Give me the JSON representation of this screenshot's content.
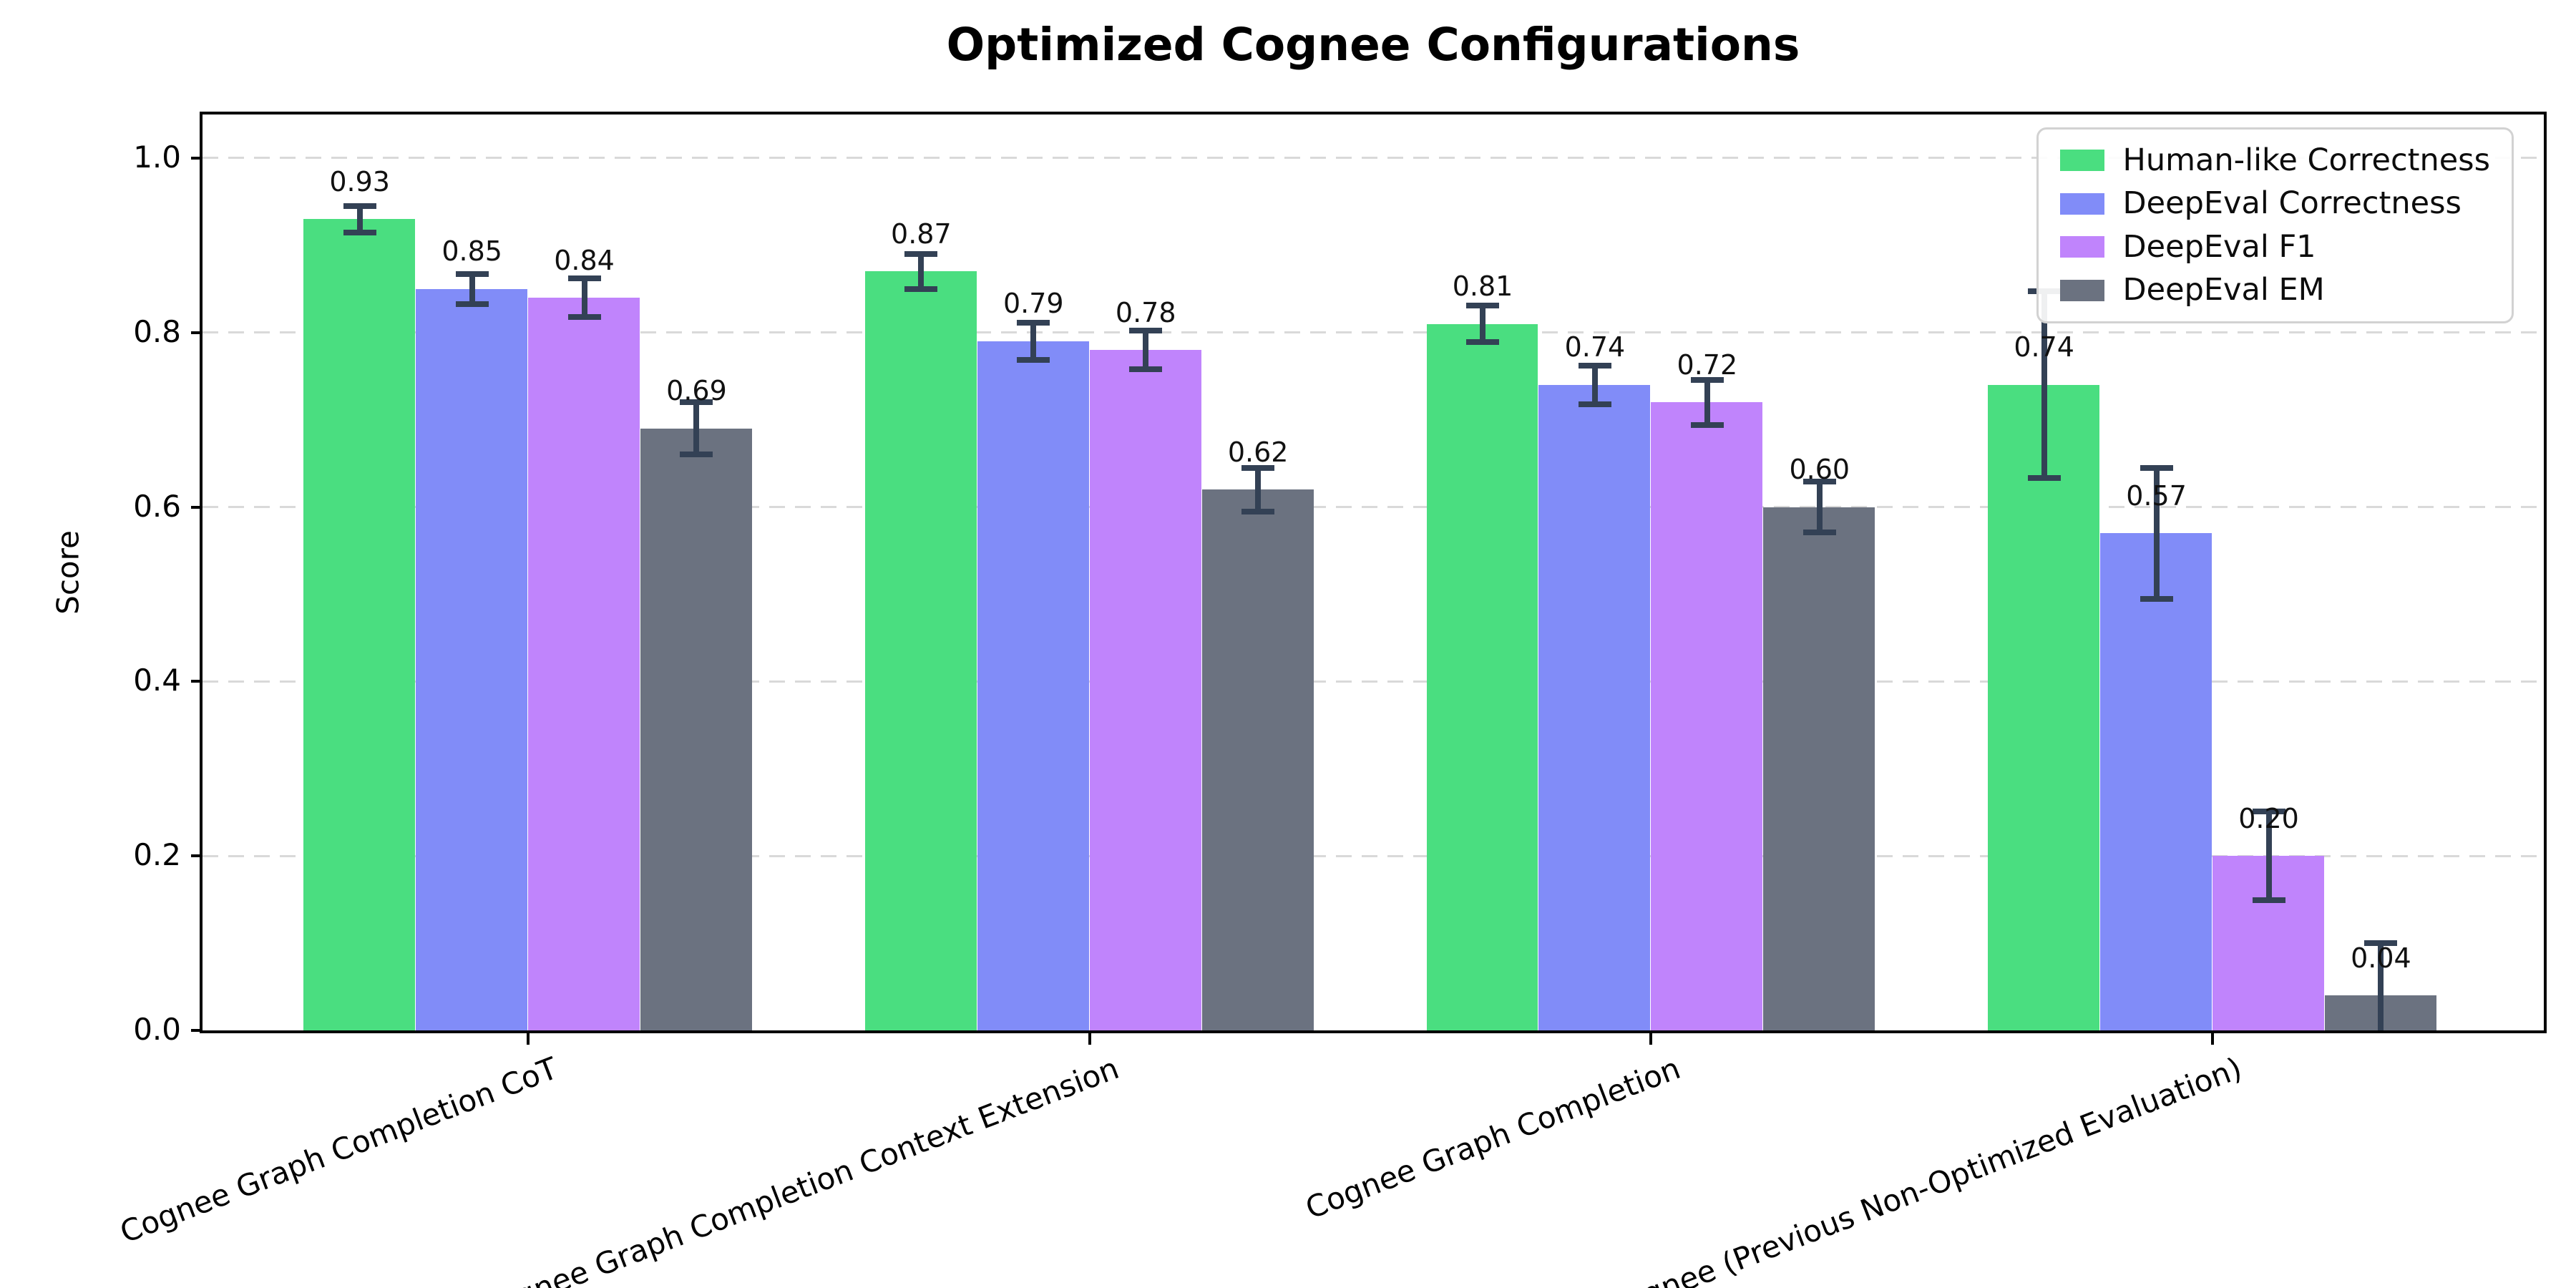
{
  "chart_data": {
    "type": "bar",
    "title": "Optimized Cognee Configurations",
    "ylabel": "Score",
    "xlabel": "",
    "categories": [
      "Cognee Graph Completion CoT",
      "Cognee Graph Completion Context Extension",
      "Cognee Graph Completion",
      "Cognee (Previous Non-Optimized Evaluation)"
    ],
    "series": [
      {
        "name": "Human-like Correctness",
        "color": "#4ade80",
        "values": [
          0.93,
          0.87,
          0.81,
          0.74
        ],
        "errors": [
          0.015,
          0.02,
          0.021,
          0.107
        ]
      },
      {
        "name": "DeepEval Correctness",
        "color": "#818cf8",
        "values": [
          0.85,
          0.79,
          0.74,
          0.57
        ],
        "errors": [
          0.017,
          0.021,
          0.022,
          0.075
        ]
      },
      {
        "name": "DeepEval F1",
        "color": "#c084fc",
        "values": [
          0.84,
          0.78,
          0.72,
          0.2
        ],
        "errors": [
          0.022,
          0.022,
          0.026,
          0.051
        ]
      },
      {
        "name": "DeepEval EM",
        "color": "#6b7280",
        "values": [
          0.69,
          0.62,
          0.6,
          0.04
        ],
        "errors": [
          0.03,
          0.025,
          0.029,
          0.06
        ]
      }
    ],
    "bar_value_labels": [
      [
        "0.93",
        "0.87",
        "0.81",
        "0.74"
      ],
      [
        "0.85",
        "0.79",
        "0.74",
        "0.57"
      ],
      [
        "0.84",
        "0.78",
        "0.72",
        "0.20"
      ],
      [
        "0.69",
        "0.62",
        "0.60",
        "0.04"
      ]
    ],
    "ylim": [
      0,
      1.05
    ],
    "yticks": [
      0.0,
      0.2,
      0.4,
      0.6,
      0.8,
      1.0
    ],
    "ytick_labels": [
      "0.0",
      "0.2",
      "0.4",
      "0.6",
      "0.8",
      "1.0"
    ],
    "grid": true,
    "grid_style": "dashed-horizontal",
    "legend_position": "upper right",
    "error_bar_color": "#334155",
    "x_tick_label_rotation_deg": 21
  }
}
